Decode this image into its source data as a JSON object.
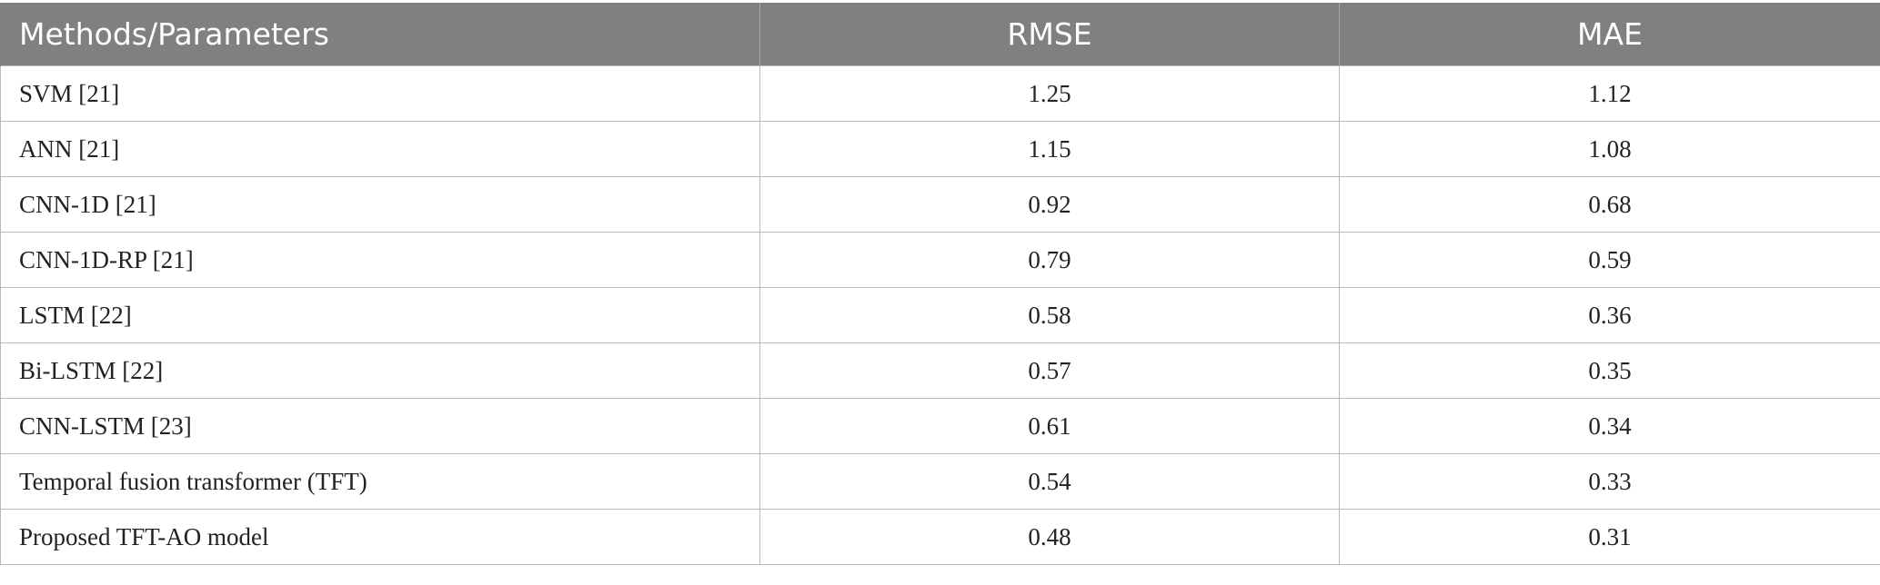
{
  "table": {
    "headers": [
      "Methods/Parameters",
      "RMSE",
      "MAE"
    ],
    "rows": [
      [
        "SVM [21]",
        "1.25",
        "1.12"
      ],
      [
        "ANN [21]",
        "1.15",
        "1.08"
      ],
      [
        "CNN-1D [21]",
        "0.92",
        "0.68"
      ],
      [
        "CNN-1D-RP [21]",
        "0.79",
        "0.59"
      ],
      [
        "LSTM [22]",
        "0.58",
        "0.36"
      ],
      [
        "Bi-LSTM [22]",
        "0.57",
        "0.35"
      ],
      [
        "CNN-LSTM [23]",
        "0.61",
        "0.34"
      ],
      [
        "Temporal fusion transformer (TFT)",
        "0.54",
        "0.33"
      ],
      [
        "Proposed TFT-AO model",
        "0.48",
        "0.31"
      ]
    ],
    "colors": {
      "header_bg": "#808080",
      "header_text": "#ffffff",
      "grid": "#b9b9b9"
    }
  }
}
